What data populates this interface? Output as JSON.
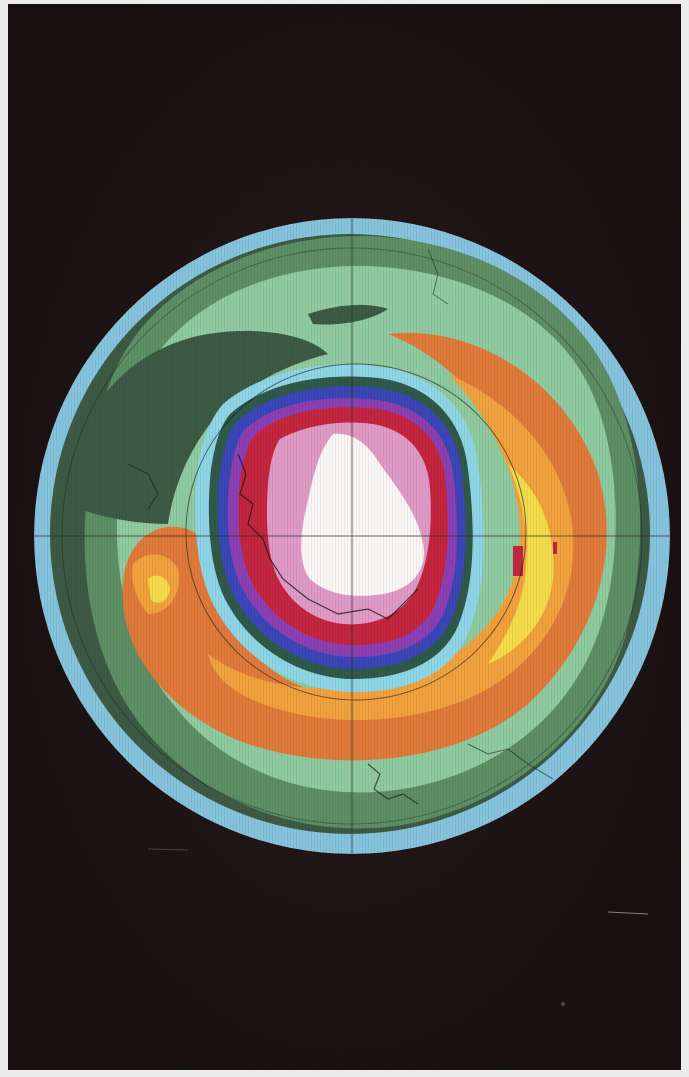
{
  "image": {
    "subject": "",
    "colors": {
      "background": "#1c1213",
      "rim": "#86c3dd",
      "dark_green": "#3d5a44",
      "mid_green": "#5d8e64",
      "light_green": "#8fcaa0",
      "orange": "#e07a3a",
      "amber": "#f2a23c",
      "yellow": "#f4dc4a",
      "cyan": "#8ed6e6",
      "blue": "#3b46b8",
      "violet": "#8c3fb2",
      "red": "#c4253f",
      "pink": "#e09ac6",
      "white": "#fbf7f7"
    }
  }
}
